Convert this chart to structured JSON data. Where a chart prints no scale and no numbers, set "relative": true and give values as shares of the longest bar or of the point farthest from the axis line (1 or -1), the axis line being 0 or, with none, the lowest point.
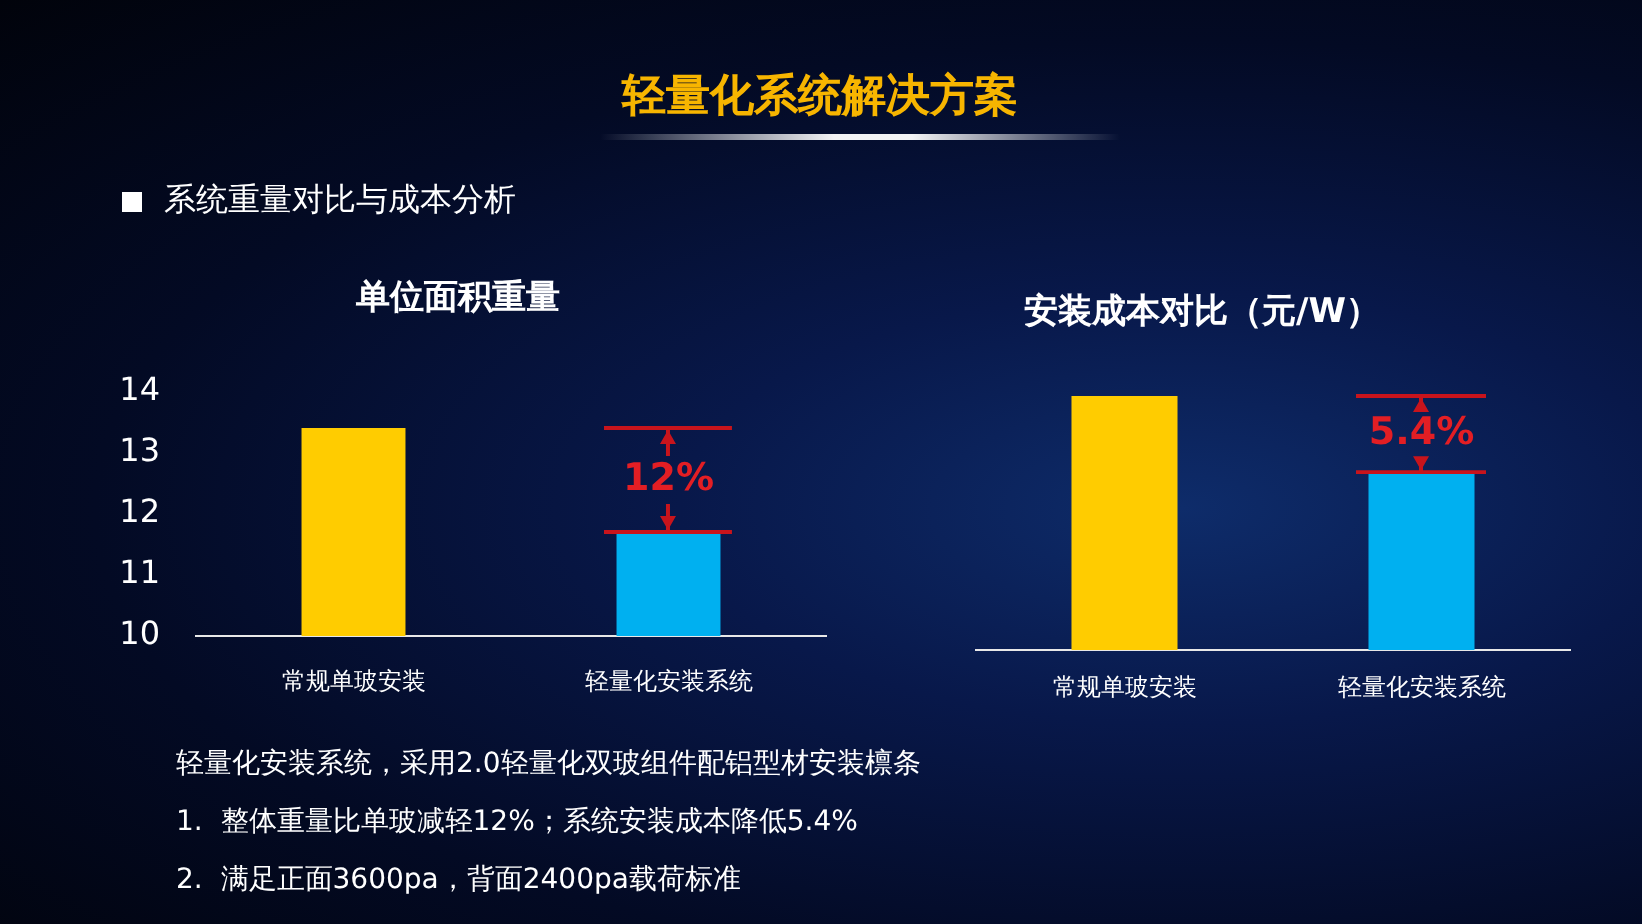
{
  "chart_data": [
    {
      "type": "other",
      "title": "轻量化系统解决方案",
      "subtitle": "系统重量对比与成本分析"
    },
    {
      "type": "bar",
      "title": "单位面积重量",
      "categories": [
        "常规单玻安装",
        "轻量化安装系统"
      ],
      "values": [
        13.4,
        11.7
      ],
      "colors": [
        "#ffcc00",
        "#00b0f0"
      ],
      "ylim": [
        10,
        14
      ],
      "yticks": [
        10,
        11,
        12,
        13,
        14
      ],
      "annotations": [
        "12%"
      ]
    },
    {
      "type": "bar",
      "title": "安装成本对比（元/W）",
      "categories": [
        "常规单玻安装",
        "轻量化安装系统"
      ],
      "values": [
        1,
        0.7
      ],
      "colors": [
        "#ffcc00",
        "#00b0f0"
      ],
      "relative": true,
      "annotations": [
        "5.4%"
      ]
    },
    {
      "type": "other",
      "annotations": [
        "轻量化安装系统，采用2.0轻量化双玻组件配铝型材安装檩条",
        "1.  整体重量比单玻减轻12%；系统安装成本降低5.4%",
        "2.  满足正面3600pa，背面2400pa载荷标准"
      ]
    }
  ]
}
